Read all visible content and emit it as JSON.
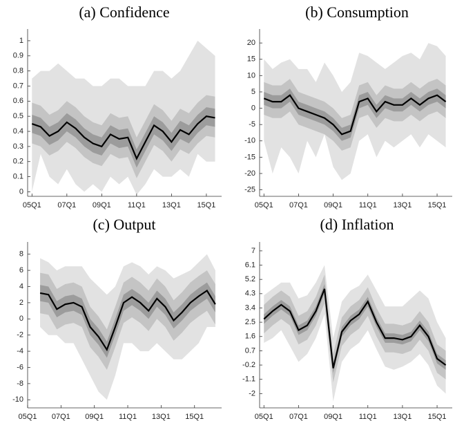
{
  "chart_data": [
    {
      "type": "fan",
      "title": "(a) Confidence",
      "x": [
        0,
        2,
        4,
        6,
        8,
        10,
        12,
        14,
        16,
        18,
        20,
        22,
        24,
        26,
        28,
        30,
        32,
        34,
        36,
        38,
        40,
        42
      ],
      "xlim": [
        -1,
        43.5
      ],
      "xticks": [
        {
          "value": 0,
          "label": "05Q1"
        },
        {
          "value": 8,
          "label": "07Q1"
        },
        {
          "value": 16,
          "label": "09Q1"
        },
        {
          "value": 24,
          "label": "11Q1"
        },
        {
          "value": 32,
          "label": "13Q1"
        },
        {
          "value": 40,
          "label": "15Q1"
        }
      ],
      "ylim": [
        -0.03,
        1.05
      ],
      "yticks": [
        0,
        0.1,
        0.2,
        0.3,
        0.4,
        0.5,
        0.6,
        0.7,
        0.8,
        0.9,
        1
      ],
      "bands": [
        {
          "color": "#e2e2e2",
          "lower": [
            0.0,
            0.25,
            0.1,
            0.05,
            0.15,
            0.05,
            0.0,
            0.05,
            0.0,
            0.1,
            0.05,
            0.1,
            -0.02,
            0.05,
            0.15,
            0.1,
            0.1,
            0.15,
            0.1,
            0.25,
            0.2,
            0.2
          ],
          "upper": [
            0.75,
            0.8,
            0.8,
            0.85,
            0.8,
            0.75,
            0.75,
            0.7,
            0.7,
            0.75,
            0.75,
            0.7,
            0.7,
            0.7,
            0.8,
            0.8,
            0.75,
            0.8,
            0.9,
            1.0,
            0.95,
            0.9
          ]
        },
        {
          "color": "#c4c4c4",
          "lower": [
            0.32,
            0.3,
            0.24,
            0.27,
            0.33,
            0.29,
            0.23,
            0.19,
            0.17,
            0.25,
            0.22,
            0.23,
            0.09,
            0.2,
            0.31,
            0.27,
            0.2,
            0.28,
            0.25,
            0.32,
            0.37,
            0.36
          ],
          "upper": [
            0.59,
            0.57,
            0.51,
            0.54,
            0.6,
            0.56,
            0.5,
            0.46,
            0.44,
            0.52,
            0.49,
            0.5,
            0.36,
            0.47,
            0.58,
            0.54,
            0.47,
            0.55,
            0.52,
            0.59,
            0.64,
            0.63
          ]
        },
        {
          "color": "#9c9c9c",
          "lower": [
            0.39,
            0.37,
            0.31,
            0.34,
            0.4,
            0.36,
            0.3,
            0.26,
            0.24,
            0.32,
            0.29,
            0.3,
            0.16,
            0.27,
            0.38,
            0.34,
            0.27,
            0.35,
            0.32,
            0.39,
            0.44,
            0.43
          ],
          "upper": [
            0.51,
            0.49,
            0.43,
            0.46,
            0.52,
            0.48,
            0.42,
            0.38,
            0.36,
            0.44,
            0.41,
            0.42,
            0.28,
            0.39,
            0.5,
            0.46,
            0.39,
            0.47,
            0.44,
            0.51,
            0.56,
            0.55
          ]
        }
      ],
      "median": {
        "color": "#000000",
        "values": [
          0.45,
          0.43,
          0.37,
          0.4,
          0.46,
          0.42,
          0.36,
          0.32,
          0.3,
          0.38,
          0.35,
          0.36,
          0.22,
          0.33,
          0.44,
          0.4,
          0.33,
          0.41,
          0.38,
          0.45,
          0.5,
          0.49
        ]
      }
    },
    {
      "type": "fan",
      "title": "(b) Consumption",
      "x": [
        0,
        2,
        4,
        6,
        8,
        10,
        12,
        14,
        16,
        18,
        20,
        22,
        24,
        26,
        28,
        30,
        32,
        34,
        36,
        38,
        40,
        42
      ],
      "xlim": [
        -1,
        43.5
      ],
      "xticks": [
        {
          "value": 0,
          "label": "05Q1"
        },
        {
          "value": 8,
          "label": "07Q1"
        },
        {
          "value": 16,
          "label": "09Q1"
        },
        {
          "value": 24,
          "label": "11Q1"
        },
        {
          "value": 32,
          "label": "13Q1"
        },
        {
          "value": 40,
          "label": "15Q1"
        }
      ],
      "ylim": [
        -27,
        23
      ],
      "yticks": [
        -25,
        -20,
        -15,
        -10,
        -5,
        0,
        5,
        10,
        15,
        20
      ],
      "bands": [
        {
          "color": "#e2e2e2",
          "lower": [
            -10,
            -20,
            -12,
            -15,
            -20,
            -10,
            -15,
            -8,
            -18,
            -22,
            -20,
            -10,
            -8,
            -15,
            -10,
            -12,
            -10,
            -8,
            -12,
            -8,
            -10,
            -12
          ],
          "upper": [
            15,
            12,
            14,
            15,
            12,
            12,
            8,
            14,
            10,
            5,
            8,
            17,
            16,
            14,
            12,
            14,
            16,
            17,
            15,
            20,
            19,
            16
          ]
        },
        {
          "color": "#c4c4c4",
          "lower": [
            -2,
            -3,
            -3,
            -1,
            -5,
            -6,
            -7,
            -8,
            -10,
            -13,
            -12,
            -3,
            -2,
            -6,
            -3,
            -4,
            -4,
            -2,
            -4,
            -2,
            -1,
            -3
          ],
          "upper": [
            8,
            7,
            7,
            9,
            5,
            4,
            3,
            2,
            0,
            -3,
            -2,
            7,
            8,
            4,
            7,
            6,
            6,
            8,
            6,
            8,
            9,
            7
          ]
        },
        {
          "color": "#9c9c9c",
          "lower": [
            1,
            0,
            0,
            2,
            -2,
            -3,
            -4,
            -5,
            -7,
            -10,
            -9,
            0,
            1,
            -3,
            0,
            -1,
            -1,
            1,
            -1,
            1,
            2,
            0
          ],
          "upper": [
            5,
            4,
            4,
            6,
            2,
            1,
            0,
            -1,
            -3,
            -6,
            -5,
            4,
            5,
            1,
            4,
            3,
            3,
            5,
            3,
            5,
            6,
            4
          ]
        }
      ],
      "median": {
        "color": "#000000",
        "values": [
          3,
          2,
          2,
          4,
          0,
          -1,
          -2,
          -3,
          -5,
          -8,
          -7,
          2,
          3,
          -1,
          2,
          1,
          1,
          3,
          1,
          3,
          4,
          2
        ]
      }
    },
    {
      "type": "fan",
      "title": "(c) Output",
      "x": [
        0,
        2,
        4,
        6,
        8,
        10,
        12,
        14,
        16,
        18,
        20,
        22,
        24,
        26,
        28,
        30,
        32,
        34,
        36,
        38,
        40,
        42
      ],
      "xlim": [
        -3,
        43.5
      ],
      "xticks": [
        {
          "value": -3,
          "label": "05Q1"
        },
        {
          "value": 5,
          "label": "07Q1"
        },
        {
          "value": 13,
          "label": "09Q1"
        },
        {
          "value": 21,
          "label": "11Q1"
        },
        {
          "value": 29,
          "label": "13Q1"
        },
        {
          "value": 37,
          "label": "15Q1"
        }
      ],
      "ylim": [
        -11,
        9
      ],
      "yticks": [
        -10,
        -8,
        -6,
        -4,
        -2,
        0,
        2,
        4,
        6,
        8
      ],
      "bands": [
        {
          "color": "#e2e2e2",
          "lower": [
            -1,
            -2,
            -2,
            -3,
            -3,
            -5,
            -7,
            -9,
            -10,
            -7,
            -3,
            -3,
            -4,
            -4,
            -3,
            -4,
            -5,
            -5,
            -4,
            -3,
            -1,
            -1
          ],
          "upper": [
            7.5,
            7,
            6,
            6.5,
            6.5,
            6.5,
            5,
            4,
            3,
            4,
            6.5,
            7,
            6.5,
            5.5,
            6.5,
            6,
            5,
            5.5,
            6,
            7,
            8,
            6
          ]
        },
        {
          "color": "#c4c4c4",
          "lower": [
            0.7,
            0.5,
            -1.3,
            -0.7,
            -0.5,
            -1,
            -3.5,
            -4.7,
            -6.3,
            -3.5,
            -0.5,
            0.2,
            -0.5,
            -1.5,
            0,
            -1,
            -2.7,
            -1.7,
            -0.5,
            0.3,
            1,
            -0.7
          ],
          "upper": [
            5.7,
            5.5,
            3.7,
            4.3,
            4.5,
            4,
            1.5,
            0.3,
            -1.3,
            1.5,
            4.5,
            5.2,
            4.5,
            3.5,
            5,
            4,
            2.3,
            3.3,
            4.5,
            5.3,
            6,
            4.3
          ]
        },
        {
          "color": "#9c9c9c",
          "lower": [
            2.2,
            2,
            0.2,
            0.8,
            1,
            0.5,
            -2,
            -3.2,
            -4.8,
            -2,
            1,
            1.7,
            1,
            0,
            1.5,
            0.5,
            -1.2,
            -0.2,
            1,
            1.8,
            2.5,
            0.8
          ],
          "upper": [
            4.2,
            4,
            2.2,
            2.8,
            3,
            2.5,
            0,
            -1.2,
            -2.8,
            0,
            3,
            3.7,
            3,
            2,
            3.5,
            2.5,
            0.8,
            1.8,
            3,
            3.8,
            4.5,
            2.8
          ]
        }
      ],
      "median": {
        "color": "#000000",
        "values": [
          3.2,
          3,
          1.2,
          1.8,
          2,
          1.5,
          -1,
          -2.2,
          -3.8,
          -1,
          2,
          2.7,
          2,
          1,
          2.5,
          1.5,
          -0.2,
          0.8,
          2,
          2.8,
          3.5,
          1.8
        ]
      }
    },
    {
      "type": "fan",
      "title": "(d) Inflation",
      "x": [
        0,
        2,
        4,
        6,
        8,
        10,
        12,
        14,
        16,
        18,
        20,
        22,
        24,
        26,
        28,
        30,
        32,
        34,
        36,
        38,
        40,
        42
      ],
      "xlim": [
        -1,
        43.5
      ],
      "xticks": [
        {
          "value": 0,
          "label": "05Q1"
        },
        {
          "value": 8,
          "label": "07Q1"
        },
        {
          "value": 16,
          "label": "09Q1"
        },
        {
          "value": 24,
          "label": "11Q1"
        },
        {
          "value": 32,
          "label": "13Q1"
        },
        {
          "value": 40,
          "label": "15Q1"
        }
      ],
      "ylim": [
        -2.9,
        7.3
      ],
      "yticks": [
        -2,
        -1.1,
        -0.2,
        0.7,
        1.6,
        2.5,
        3.4,
        4.3,
        5.2,
        6.1,
        7
      ],
      "bands": [
        {
          "color": "#e2e2e2",
          "lower": [
            1.2,
            1.5,
            2.0,
            1.0,
            0.0,
            0.5,
            1.5,
            3.0,
            -2.5,
            0.0,
            0.8,
            1.2,
            2.0,
            0.8,
            -0.3,
            -0.5,
            -0.3,
            0.0,
            0.5,
            -0.2,
            -1.5,
            -2.0
          ],
          "upper": [
            4.2,
            4.6,
            5.0,
            5.0,
            4.0,
            4.2,
            5.0,
            6.1,
            1.5,
            3.8,
            4.5,
            4.8,
            5.5,
            4.5,
            3.5,
            3.5,
            3.5,
            4.0,
            4.5,
            4.0,
            2.5,
            1.5
          ]
        },
        {
          "color": "#c4c4c4",
          "lower": [
            1.8,
            2.3,
            2.7,
            2.3,
            1.1,
            1.4,
            2.3,
            3.7,
            -1.3,
            1.0,
            1.7,
            2.1,
            2.9,
            1.6,
            0.6,
            0.6,
            0.5,
            0.7,
            1.4,
            0.7,
            -0.7,
            -1.1
          ],
          "upper": [
            3.6,
            4.1,
            4.5,
            4.1,
            2.9,
            3.2,
            4.1,
            5.5,
            0.5,
            2.8,
            3.5,
            3.9,
            4.7,
            3.4,
            2.4,
            2.4,
            2.3,
            2.5,
            3.2,
            2.5,
            1.1,
            0.7
          ]
        },
        {
          "color": "#9c9c9c",
          "lower": [
            2.4,
            2.9,
            3.3,
            2.9,
            1.7,
            2.0,
            2.9,
            4.3,
            -0.7,
            1.6,
            2.3,
            2.7,
            3.5,
            2.2,
            1.2,
            1.2,
            1.1,
            1.3,
            2.0,
            1.3,
            -0.1,
            -0.5
          ],
          "upper": [
            3.0,
            3.5,
            3.9,
            3.5,
            2.3,
            2.6,
            3.5,
            4.9,
            -0.1,
            2.2,
            2.9,
            3.3,
            4.1,
            2.8,
            1.8,
            1.8,
            1.7,
            1.9,
            2.6,
            1.9,
            0.5,
            0.1
          ]
        }
      ],
      "median": {
        "color": "#000000",
        "values": [
          2.7,
          3.2,
          3.6,
          3.2,
          2.0,
          2.3,
          3.2,
          4.6,
          -0.4,
          1.9,
          2.6,
          3.0,
          3.8,
          2.5,
          1.5,
          1.5,
          1.4,
          1.6,
          2.3,
          1.6,
          0.2,
          -0.2
        ]
      }
    }
  ]
}
